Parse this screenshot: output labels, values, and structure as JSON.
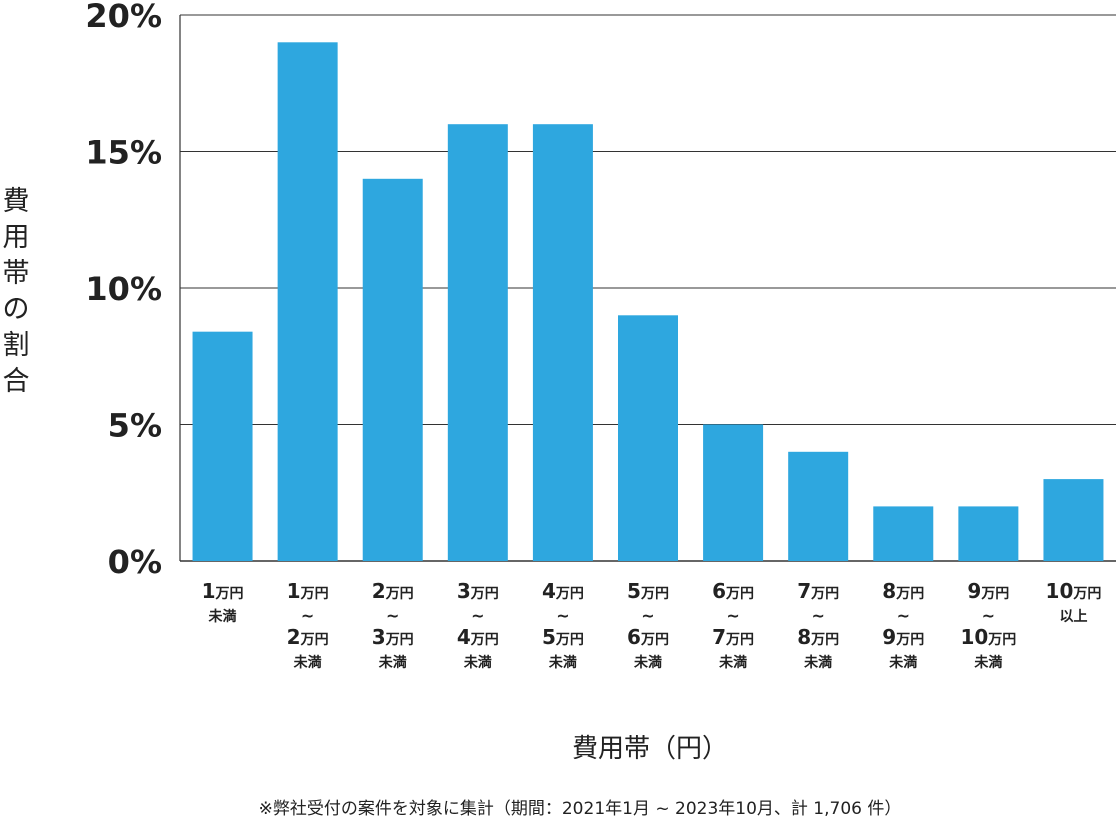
{
  "chart_data": {
    "type": "bar",
    "ylabel": "費用帯の割合",
    "xlabel": "費用帯（円）",
    "ylim": [
      0,
      20
    ],
    "yticks": [
      0,
      5,
      10,
      15,
      20
    ],
    "ytick_labels": [
      "0%",
      "5%",
      "10%",
      "15%",
      "20%"
    ],
    "grid": true,
    "bar_color": "#2ea7df",
    "categories": [
      {
        "lines": [
          [
            "1",
            "万円"
          ],
          [
            "",
            "未満"
          ]
        ]
      },
      {
        "lines": [
          [
            "1",
            "万円"
          ],
          [
            "",
            "~"
          ],
          [
            "2",
            "万円"
          ],
          [
            "",
            "未満"
          ]
        ]
      },
      {
        "lines": [
          [
            "2",
            "万円"
          ],
          [
            "",
            "~"
          ],
          [
            "3",
            "万円"
          ],
          [
            "",
            "未満"
          ]
        ]
      },
      {
        "lines": [
          [
            "3",
            "万円"
          ],
          [
            "",
            "~"
          ],
          [
            "4",
            "万円"
          ],
          [
            "",
            "未満"
          ]
        ]
      },
      {
        "lines": [
          [
            "4",
            "万円"
          ],
          [
            "",
            "~"
          ],
          [
            "5",
            "万円"
          ],
          [
            "",
            "未満"
          ]
        ]
      },
      {
        "lines": [
          [
            "5",
            "万円"
          ],
          [
            "",
            "~"
          ],
          [
            "6",
            "万円"
          ],
          [
            "",
            "未満"
          ]
        ]
      },
      {
        "lines": [
          [
            "6",
            "万円"
          ],
          [
            "",
            "~"
          ],
          [
            "7",
            "万円"
          ],
          [
            "",
            "未満"
          ]
        ]
      },
      {
        "lines": [
          [
            "7",
            "万円"
          ],
          [
            "",
            "~"
          ],
          [
            "8",
            "万円"
          ],
          [
            "",
            "未満"
          ]
        ]
      },
      {
        "lines": [
          [
            "8",
            "万円"
          ],
          [
            "",
            "~"
          ],
          [
            "9",
            "万円"
          ],
          [
            "",
            "未満"
          ]
        ]
      },
      {
        "lines": [
          [
            "9",
            "万円"
          ],
          [
            "",
            "~"
          ],
          [
            "10",
            "万円"
          ],
          [
            "",
            "未満"
          ]
        ]
      },
      {
        "lines": [
          [
            "10",
            "万円"
          ],
          [
            "",
            "以上"
          ]
        ]
      }
    ],
    "values": [
      8.4,
      19,
      14,
      16,
      16,
      9,
      5,
      4,
      2,
      2,
      3
    ]
  },
  "footnote": "※弊社受付の案件を対象に集計（期間：2021年1月 ~ 2023年10月、計 1,706 件）"
}
